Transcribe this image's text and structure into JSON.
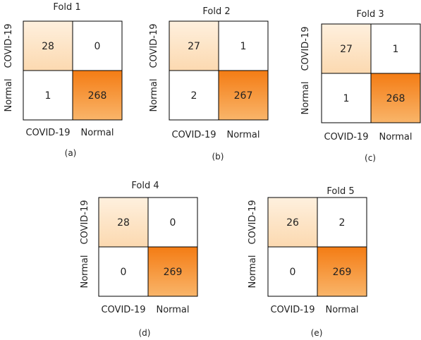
{
  "chart_data": [
    {
      "type": "heatmap",
      "title": "Fold 1",
      "panel_label": "(a)",
      "row_labels": [
        "COVID-19",
        "Normal"
      ],
      "col_labels": [
        "COVID-19",
        "Normal"
      ],
      "matrix": [
        [
          28,
          0
        ],
        [
          1,
          268
        ]
      ]
    },
    {
      "type": "heatmap",
      "title": "Fold 2",
      "panel_label": "(b)",
      "row_labels": [
        "COVID-19",
        "Normal"
      ],
      "col_labels": [
        "COVID-19",
        "Normal"
      ],
      "matrix": [
        [
          27,
          1
        ],
        [
          2,
          267
        ]
      ]
    },
    {
      "type": "heatmap",
      "title": "Fold 3",
      "panel_label": "(c)",
      "row_labels": [
        "COVID-19",
        "Normal"
      ],
      "col_labels": [
        "COVID-19",
        "Normal"
      ],
      "matrix": [
        [
          27,
          1
        ],
        [
          1,
          268
        ]
      ]
    },
    {
      "type": "heatmap",
      "title": "Fold 4",
      "panel_label": "(d)",
      "row_labels": [
        "COVID-19",
        "Normal"
      ],
      "col_labels": [
        "COVID-19",
        "Normal"
      ],
      "matrix": [
        [
          28,
          0
        ],
        [
          0,
          269
        ]
      ]
    },
    {
      "type": "heatmap",
      "title": "Fold 5",
      "panel_label": "(e)",
      "row_labels": [
        "COVID-19",
        "Normal"
      ],
      "col_labels": [
        "COVID-19",
        "Normal"
      ],
      "matrix": [
        [
          26,
          2
        ],
        [
          0,
          269
        ]
      ]
    }
  ],
  "colors": {
    "low": "#ffffff",
    "mid": "#fcd9b0",
    "high": "#f47f1a",
    "border": "#000000",
    "text": "#222222"
  }
}
